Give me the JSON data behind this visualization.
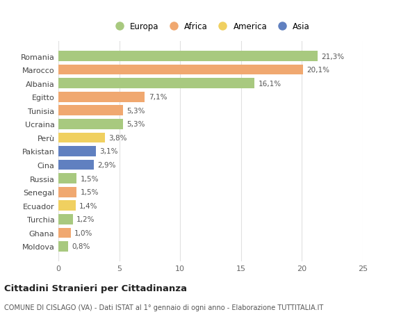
{
  "categories": [
    "Romania",
    "Marocco",
    "Albania",
    "Egitto",
    "Tunisia",
    "Ucraina",
    "Perù",
    "Pakistan",
    "Cina",
    "Russia",
    "Senegal",
    "Ecuador",
    "Turchia",
    "Ghana",
    "Moldova"
  ],
  "values": [
    21.3,
    20.1,
    16.1,
    7.1,
    5.3,
    5.3,
    3.8,
    3.1,
    2.9,
    1.5,
    1.5,
    1.4,
    1.2,
    1.0,
    0.8
  ],
  "labels": [
    "21,3%",
    "20,1%",
    "16,1%",
    "7,1%",
    "5,3%",
    "5,3%",
    "3,8%",
    "3,1%",
    "2,9%",
    "1,5%",
    "1,5%",
    "1,4%",
    "1,2%",
    "1,0%",
    "0,8%"
  ],
  "continents": [
    "Europa",
    "Africa",
    "Europa",
    "Africa",
    "Africa",
    "Europa",
    "America",
    "Asia",
    "Asia",
    "Europa",
    "Africa",
    "America",
    "Europa",
    "Africa",
    "Europa"
  ],
  "continent_colors": {
    "Europa": "#a8c97f",
    "Africa": "#f0a870",
    "America": "#f0d060",
    "Asia": "#6080c0"
  },
  "legend_order": [
    "Europa",
    "Africa",
    "America",
    "Asia"
  ],
  "title": "Cittadini Stranieri per Cittadinanza",
  "subtitle": "COMUNE DI CISLAGO (VA) - Dati ISTAT al 1° gennaio di ogni anno - Elaborazione TUTTITALIA.IT",
  "xlim": [
    0,
    25
  ],
  "xticks": [
    0,
    5,
    10,
    15,
    20,
    25
  ],
  "background_color": "#ffffff",
  "grid_color": "#e0e0e0",
  "bar_height": 0.75
}
